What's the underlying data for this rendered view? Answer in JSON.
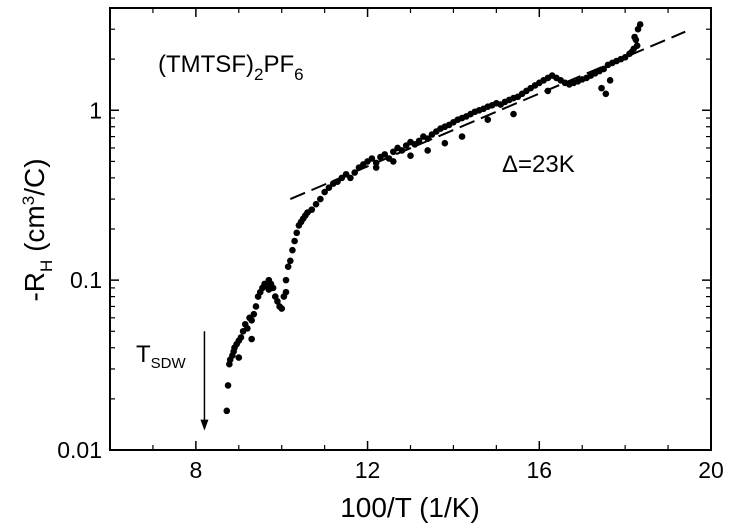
{
  "chart_data": {
    "type": "scatter",
    "xlabel": "100/T (1/K)",
    "ylabel": {
      "main": "-R",
      "sub": "H",
      "unit_pre": " (cm",
      "sup": "3",
      "unit_post": "/C)"
    },
    "xlim": [
      6,
      20
    ],
    "ylim": [
      0.01,
      4
    ],
    "yscale": "log",
    "xticks": [
      8,
      12,
      16,
      20
    ],
    "xtick_labels": [
      "8",
      "12",
      "16",
      "20"
    ],
    "yticks": [
      0.01,
      0.1,
      1
    ],
    "ytick_labels": [
      "0.01",
      "0.1",
      "1"
    ],
    "grid": false,
    "annotations": {
      "compound": {
        "a": "(TMTSF)",
        "b": "2",
        "c": "PF",
        "d": "6"
      },
      "gap": "Δ=23K",
      "tsdw": {
        "main": "T",
        "sub": "SDW"
      },
      "tsdw_x": 8.2,
      "tsdw_arrow_from": 0.05,
      "tsdw_arrow_to": 0.013
    },
    "series": [
      {
        "name": "fit",
        "style": "dashed",
        "x": [
          10.2,
          19.4
        ],
        "y": [
          0.3,
          2.9
        ]
      },
      {
        "name": "data",
        "style": "markers",
        "x": [
          8.72,
          8.75,
          8.78,
          8.8,
          8.85,
          8.88,
          8.9,
          8.95,
          9.0,
          9.05,
          9.1,
          9.15,
          9.2,
          9.25,
          9.3,
          9.35,
          9.4,
          9.45,
          9.5,
          9.55,
          9.6,
          9.65,
          9.7,
          9.75,
          9.8,
          9.85,
          9.9,
          9.95,
          10.0,
          10.05,
          10.1,
          10.15,
          10.2,
          10.25,
          10.3,
          10.35,
          10.4,
          10.45,
          10.5,
          10.55,
          10.6,
          10.7,
          10.8,
          10.9,
          11.0,
          11.1,
          11.2,
          11.3,
          11.4,
          11.5,
          11.6,
          11.7,
          11.8,
          11.9,
          12.0,
          12.1,
          12.2,
          12.3,
          12.4,
          12.5,
          12.6,
          12.7,
          12.8,
          12.9,
          13.0,
          13.1,
          13.2,
          13.3,
          13.4,
          13.5,
          13.6,
          13.7,
          13.8,
          13.9,
          14.0,
          14.1,
          14.2,
          14.3,
          14.4,
          14.5,
          14.6,
          14.7,
          14.8,
          14.9,
          15.0,
          15.1,
          15.2,
          15.3,
          15.4,
          15.5,
          15.6,
          15.7,
          15.8,
          15.9,
          16.0,
          16.1,
          16.2,
          16.3,
          16.4,
          16.5,
          16.6,
          16.7,
          16.8,
          16.9,
          17.0,
          17.1,
          17.2,
          17.3,
          17.4,
          17.5,
          17.6,
          17.7,
          17.8,
          17.9,
          18.0,
          18.1,
          18.2,
          18.25,
          18.3,
          18.35,
          12.2,
          12.6,
          13.0,
          13.4,
          13.8,
          14.2,
          14.8,
          15.4,
          16.2,
          17.45,
          17.55,
          17.65,
          18.15,
          18.22,
          18.28,
          9.0,
          9.3,
          9.7,
          10.1
        ],
        "y": [
          0.017,
          0.024,
          0.032,
          0.034,
          0.036,
          0.038,
          0.04,
          0.042,
          0.044,
          0.046,
          0.05,
          0.055,
          0.052,
          0.06,
          0.058,
          0.063,
          0.07,
          0.08,
          0.085,
          0.09,
          0.095,
          0.092,
          0.088,
          0.095,
          0.09,
          0.08,
          0.075,
          0.07,
          0.068,
          0.08,
          0.1,
          0.12,
          0.13,
          0.15,
          0.17,
          0.19,
          0.21,
          0.22,
          0.23,
          0.24,
          0.25,
          0.26,
          0.28,
          0.3,
          0.33,
          0.35,
          0.37,
          0.38,
          0.4,
          0.42,
          0.4,
          0.43,
          0.46,
          0.48,
          0.5,
          0.52,
          0.49,
          0.53,
          0.55,
          0.52,
          0.57,
          0.6,
          0.58,
          0.62,
          0.65,
          0.63,
          0.66,
          0.7,
          0.68,
          0.72,
          0.75,
          0.78,
          0.8,
          0.82,
          0.85,
          0.88,
          0.9,
          0.92,
          0.95,
          0.98,
          1.0,
          1.02,
          1.05,
          1.07,
          1.1,
          1.08,
          1.12,
          1.15,
          1.18,
          1.2,
          1.25,
          1.3,
          1.35,
          1.4,
          1.45,
          1.5,
          1.55,
          1.6,
          1.55,
          1.5,
          1.45,
          1.42,
          1.45,
          1.48,
          1.52,
          1.55,
          1.6,
          1.65,
          1.7,
          1.75,
          1.85,
          1.9,
          1.95,
          2.0,
          2.05,
          2.15,
          2.3,
          2.6,
          3.0,
          3.2,
          0.46,
          0.5,
          0.54,
          0.58,
          0.64,
          0.7,
          0.88,
          0.95,
          1.3,
          1.35,
          1.25,
          1.5,
          2.2,
          2.7,
          2.4,
          0.035,
          0.045,
          0.1,
          0.085
        ]
      }
    ]
  }
}
